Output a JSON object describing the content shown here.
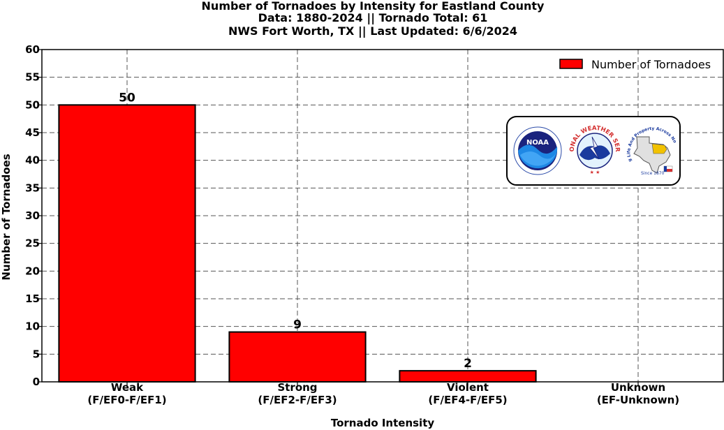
{
  "title_lines": [
    "Number of Tornadoes by Intensity for Eastland County",
    "Data: 1880-2024 || Tornado Total: 61",
    "NWS Fort Worth, TX || Last Updated: 6/6/2024"
  ],
  "logos": {
    "noaa": "NOAA",
    "nws_ring": "NATIONAL WEATHER SERVICE",
    "fort_worth_ring": "Protecting Life And Property Across North Texas",
    "fort_worth_since": "Since 1870"
  },
  "colors": {
    "bar_fill": "#ff0000",
    "bar_edge": "#000000",
    "grid": "#555555"
  },
  "chart_data": {
    "type": "bar",
    "title": "Number of Tornadoes by Intensity for Eastland County\nData: 1880-2024 || Tornado Total: 61\nNWS Fort Worth, TX || Last Updated: 6/6/2024",
    "categories": [
      [
        "Weak",
        "(F/EF0-F/EF1)"
      ],
      [
        "Strong",
        "(F/EF2-F/EF3)"
      ],
      [
        "Violent",
        "(F/EF4-F/EF5)"
      ],
      [
        "Unknown",
        "(EF-Unknown)"
      ]
    ],
    "series": [
      {
        "name": "Number of Tornadoes",
        "values": [
          50,
          9,
          2,
          0
        ]
      }
    ],
    "data_labels": [
      "50",
      "9",
      "2",
      ""
    ],
    "xlabel": "Tornado Intensity",
    "ylabel": "Number of Tornadoes",
    "ylim": [
      0,
      60
    ],
    "yticks": [
      "0",
      "5",
      "10",
      "15",
      "20",
      "25",
      "30",
      "35",
      "40",
      "45",
      "50",
      "55",
      "60"
    ],
    "grid": true,
    "legend_position": "top-right"
  }
}
